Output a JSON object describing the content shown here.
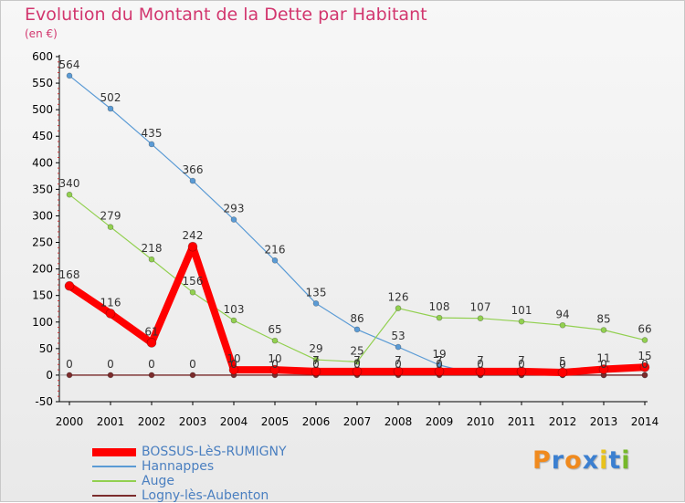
{
  "chart_data": {
    "type": "line",
    "title": "Evolution du Montant de la Dette par Habitant",
    "unit_label": "(en €)",
    "xlabel": "",
    "ylabel": "",
    "x": [
      "2000",
      "2001",
      "2002",
      "2003",
      "2004",
      "2005",
      "2006",
      "2007",
      "2008",
      "2009",
      "2010",
      "2011",
      "2012",
      "2013",
      "2014"
    ],
    "ylim": [
      -50,
      600
    ],
    "yticks": [
      -50,
      0,
      50,
      100,
      150,
      200,
      250,
      300,
      350,
      400,
      450,
      500,
      550,
      600
    ],
    "grid": false,
    "legend_position": "bottom-left",
    "series": [
      {
        "name": "Hannappes",
        "color": "#5b9bd5",
        "values": [
          564,
          502,
          435,
          366,
          293,
          216,
          135,
          86,
          53,
          19,
          0,
          0,
          0,
          0,
          0
        ],
        "labels": [
          "564",
          "502",
          "435",
          "366",
          "293",
          "216",
          "135",
          "86",
          "53",
          "19",
          "",
          "",
          "",
          "",
          ""
        ]
      },
      {
        "name": "Auge",
        "color": "#92d050",
        "values": [
          340,
          279,
          218,
          156,
          103,
          65,
          29,
          25,
          126,
          108,
          107,
          101,
          94,
          85,
          66
        ],
        "labels": [
          "340",
          "279",
          "218",
          "156",
          "103",
          "65",
          "29",
          "25",
          "126",
          "108",
          "107",
          "101",
          "94",
          "85",
          "66"
        ]
      },
      {
        "name": "Logny-lès-Aubenton",
        "color": "#7b2c2c",
        "values": [
          0,
          0,
          0,
          0,
          0,
          0,
          0,
          0,
          0,
          0,
          0,
          0,
          0,
          0,
          0
        ],
        "labels": [
          "0",
          "0",
          "0",
          "0",
          "0",
          "0",
          "0",
          "0",
          "0",
          "0",
          "0",
          "0",
          "0",
          "0",
          "0"
        ]
      },
      {
        "name": "BOSSUS-LèS-RUMIGNY",
        "color": "#ff0000",
        "values": [
          168,
          116,
          61,
          242,
          10,
          10,
          7,
          7,
          7,
          7,
          7,
          7,
          5,
          11,
          15
        ],
        "labels": [
          "168",
          "116",
          "61",
          "242",
          "10",
          "10",
          "7",
          "7",
          "7",
          "7",
          "7",
          "7",
          "5",
          "11",
          "15"
        ]
      }
    ],
    "legend": [
      "BOSSUS-LèS-RUMIGNY",
      "Hannappes",
      "Auge",
      "Logny-lès-Aubenton"
    ]
  },
  "logo": {
    "text": "Proxiti",
    "letters": [
      "P",
      "r",
      "o",
      "x",
      "i",
      "t",
      "i"
    ],
    "colors": [
      "#f08a1e",
      "#3b7fd0",
      "#f08a1e",
      "#3b7fd0",
      "#e8c21c",
      "#3b7fd0",
      "#76b82a"
    ]
  }
}
